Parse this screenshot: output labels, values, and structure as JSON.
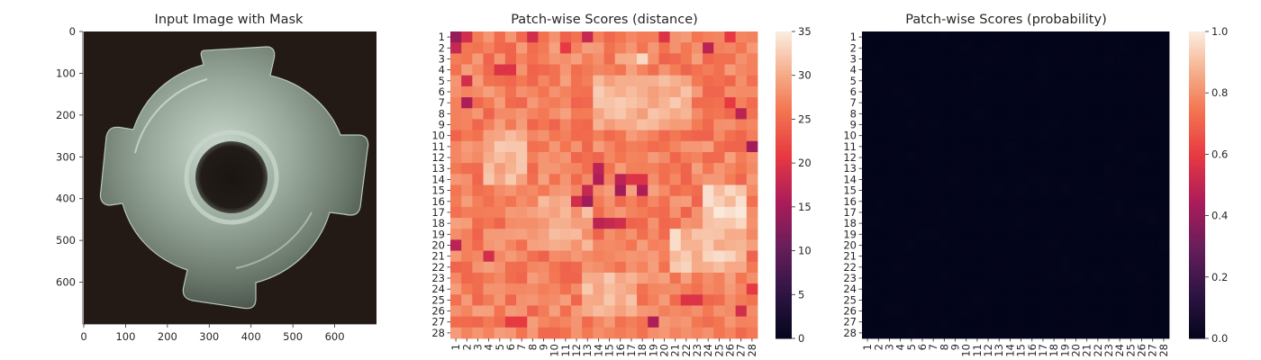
{
  "chart_data": [
    {
      "type": "image",
      "title": "Input Image with Mask",
      "xlim": [
        0,
        700
      ],
      "ylim": [
        0,
        700
      ],
      "x_ticks": [
        "0",
        "100",
        "200",
        "300",
        "400",
        "500",
        "600"
      ],
      "y_ticks": [
        "0",
        "100",
        "200",
        "300",
        "400",
        "500",
        "600"
      ],
      "subject": "metal hex nut with four flanges on dark background"
    },
    {
      "type": "heatmap",
      "title": "Patch-wise Scores (distance)",
      "rows": 28,
      "cols": 28,
      "x_tick_labels": [
        "1",
        "2",
        "3",
        "4",
        "5",
        "6",
        "7",
        "8",
        "9",
        "10",
        "11",
        "12",
        "13",
        "14",
        "15",
        "16",
        "17",
        "18",
        "19",
        "20",
        "21",
        "22",
        "23",
        "24",
        "25",
        "26",
        "27",
        "28"
      ],
      "y_tick_labels": [
        "1",
        "2",
        "3",
        "4",
        "5",
        "6",
        "7",
        "8",
        "9",
        "10",
        "11",
        "12",
        "13",
        "14",
        "15",
        "16",
        "17",
        "18",
        "19",
        "20",
        "21",
        "22",
        "23",
        "24",
        "25",
        "26",
        "27",
        "28"
      ],
      "value_range": [
        0,
        35
      ],
      "colorbar_ticks": [
        "0",
        "5",
        "10",
        "15",
        "20",
        "25",
        "30",
        "35"
      ],
      "colormap": "rocket",
      "base_value": 27,
      "low_cells": [
        {
          "row": 1,
          "col": 1,
          "value": 14
        },
        {
          "row": 1,
          "col": 2,
          "value": 19
        },
        {
          "row": 2,
          "col": 1,
          "value": 18
        },
        {
          "row": 1,
          "col": 8,
          "value": 19
        },
        {
          "row": 1,
          "col": 13,
          "value": 18
        },
        {
          "row": 1,
          "col": 20,
          "value": 20
        },
        {
          "row": 1,
          "col": 26,
          "value": 21
        },
        {
          "row": 2,
          "col": 11,
          "value": 21
        },
        {
          "row": 2,
          "col": 24,
          "value": 17
        },
        {
          "row": 4,
          "col": 5,
          "value": 20
        },
        {
          "row": 4,
          "col": 6,
          "value": 20
        },
        {
          "row": 5,
          "col": 2,
          "value": 19
        },
        {
          "row": 7,
          "col": 2,
          "value": 16
        },
        {
          "row": 7,
          "col": 26,
          "value": 21
        },
        {
          "row": 8,
          "col": 27,
          "value": 17
        },
        {
          "row": 11,
          "col": 28,
          "value": 15
        },
        {
          "row": 13,
          "col": 14,
          "value": 17
        },
        {
          "row": 14,
          "col": 14,
          "value": 16
        },
        {
          "row": 14,
          "col": 16,
          "value": 17
        },
        {
          "row": 14,
          "col": 17,
          "value": 20
        },
        {
          "row": 14,
          "col": 18,
          "value": 20
        },
        {
          "row": 15,
          "col": 13,
          "value": 18
        },
        {
          "row": 15,
          "col": 16,
          "value": 15
        },
        {
          "row": 15,
          "col": 18,
          "value": 16
        },
        {
          "row": 16,
          "col": 12,
          "value": 19
        },
        {
          "row": 16,
          "col": 13,
          "value": 15
        },
        {
          "row": 18,
          "col": 14,
          "value": 17
        },
        {
          "row": 18,
          "col": 15,
          "value": 18
        },
        {
          "row": 18,
          "col": 16,
          "value": 19
        },
        {
          "row": 20,
          "col": 1,
          "value": 17
        },
        {
          "row": 21,
          "col": 4,
          "value": 19
        },
        {
          "row": 24,
          "col": 28,
          "value": 21
        },
        {
          "row": 25,
          "col": 22,
          "value": 20
        },
        {
          "row": 25,
          "col": 23,
          "value": 20
        },
        {
          "row": 26,
          "col": 27,
          "value": 19
        },
        {
          "row": 27,
          "col": 19,
          "value": 16
        },
        {
          "row": 27,
          "col": 6,
          "value": 21
        },
        {
          "row": 27,
          "col": 7,
          "value": 21
        }
      ],
      "high_regions": [
        {
          "row_from": 5,
          "row_to": 9,
          "col_from": 14,
          "col_to": 22,
          "value": 31
        },
        {
          "row_from": 3,
          "row_to": 3,
          "col_from": 16,
          "col_to": 18,
          "value": 32
        },
        {
          "row_from": 10,
          "row_to": 14,
          "col_from": 4,
          "col_to": 7,
          "value": 31
        },
        {
          "row_from": 15,
          "row_to": 21,
          "col_from": 24,
          "col_to": 27,
          "value": 33
        },
        {
          "row_from": 19,
          "row_to": 22,
          "col_from": 21,
          "col_to": 27,
          "value": 32
        },
        {
          "row_from": 23,
          "row_to": 26,
          "col_from": 13,
          "col_to": 17,
          "value": 31
        },
        {
          "row_from": 16,
          "row_to": 20,
          "col_from": 9,
          "col_to": 13,
          "value": 30
        }
      ]
    },
    {
      "type": "heatmap",
      "title": "Patch-wise Scores (probability)",
      "rows": 28,
      "cols": 28,
      "x_tick_labels": [
        "1",
        "2",
        "3",
        "4",
        "5",
        "6",
        "7",
        "8",
        "9",
        "10",
        "11",
        "12",
        "13",
        "14",
        "15",
        "16",
        "17",
        "18",
        "19",
        "20",
        "21",
        "22",
        "23",
        "24",
        "25",
        "26",
        "27",
        "28"
      ],
      "y_tick_labels": [
        "1",
        "2",
        "3",
        "4",
        "5",
        "6",
        "7",
        "8",
        "9",
        "10",
        "11",
        "12",
        "13",
        "14",
        "15",
        "16",
        "17",
        "18",
        "19",
        "20",
        "21",
        "22",
        "23",
        "24",
        "25",
        "26",
        "27",
        "28"
      ],
      "value_range": [
        0.0,
        1.0
      ],
      "colorbar_ticks": [
        "0.0",
        "0.2",
        "0.4",
        "0.6",
        "0.8",
        "1.0"
      ],
      "colormap": "rocket",
      "base_value": 0.0,
      "low_cells": []
    }
  ]
}
